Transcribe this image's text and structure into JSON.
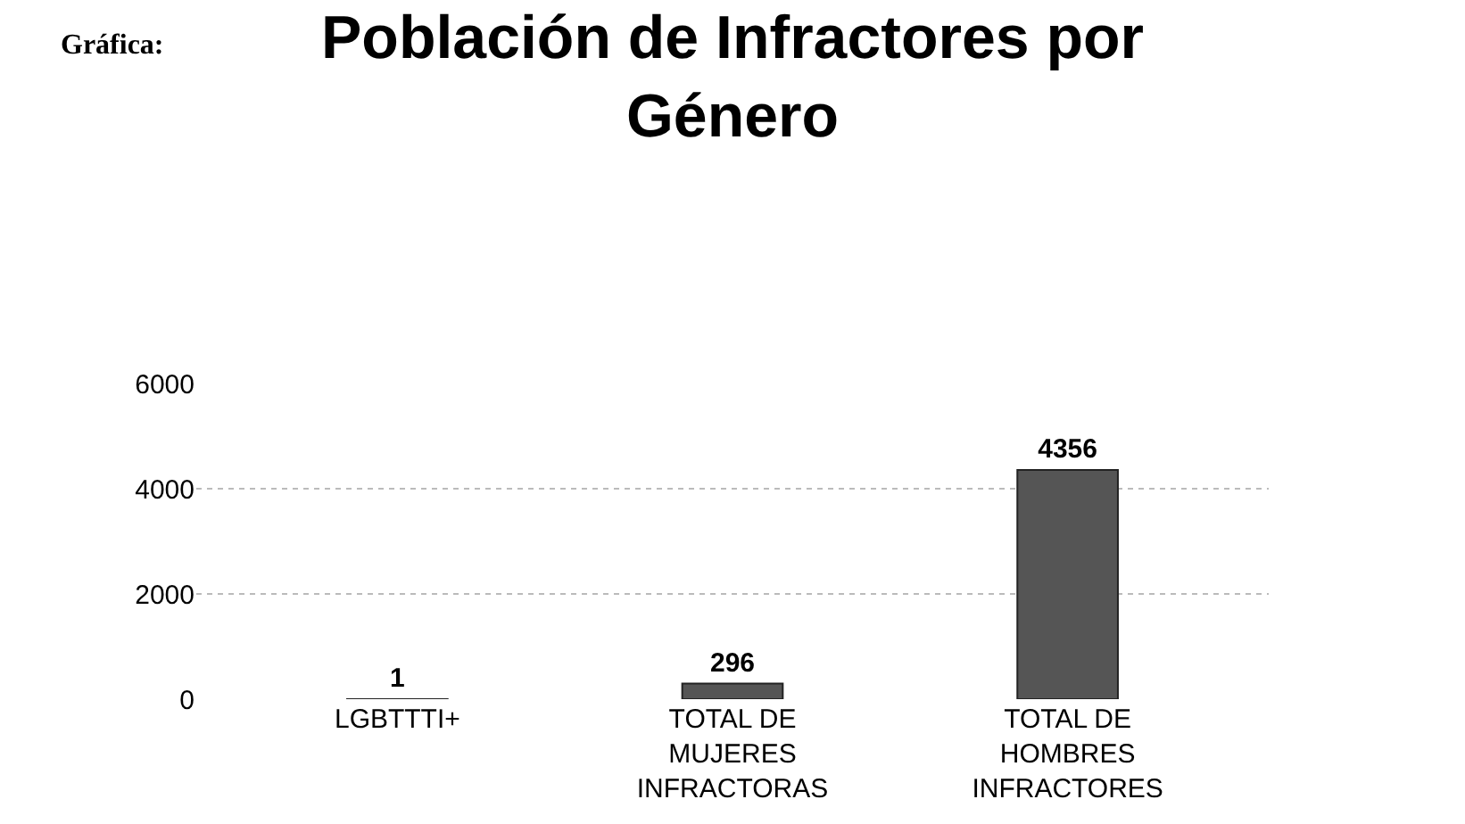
{
  "chart_data": {
    "type": "bar",
    "title": "Población de Infractores por\nGénero",
    "categories": [
      "LGBTTTI+",
      "TOTAL DE\nMUJERES\nINFRACTORAS",
      "TOTAL DE\nHOMBRES\nINFRACTORES"
    ],
    "values": [
      1,
      296,
      4356
    ],
    "color": "#555555",
    "ylim": [
      0,
      6000
    ],
    "yticks": [
      0,
      2000,
      4000,
      6000
    ],
    "grid": "y",
    "data_labels": true,
    "legend": false,
    "annotations": [
      "Gráfica:"
    ]
  }
}
